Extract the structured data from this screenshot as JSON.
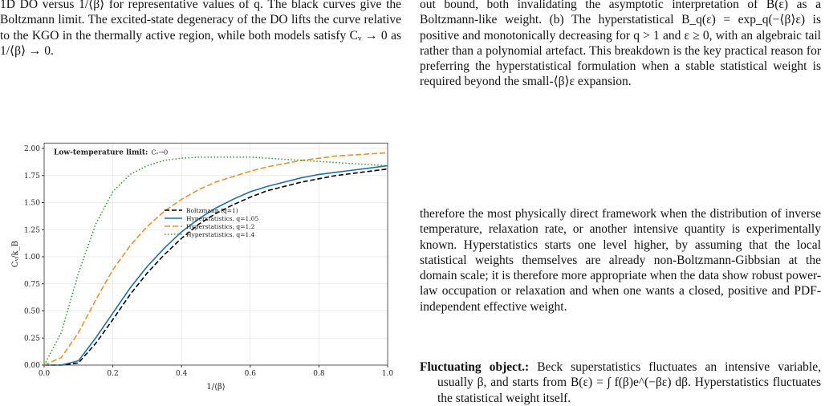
{
  "left_caption": "1D DO versus 1/⟨β⟩ for representative values of q. The black curves give the Boltzmann limit. The excited-state degeneracy of the DO lifts the curve relative to the KGO in the thermally active region, while both models satisfy Cᵥ → 0 as 1/⟨β⟩ → 0.",
  "chart_data": {
    "type": "line",
    "annotation_label": "Low-temperature limit:",
    "annotation_formula": "Cᵥ→0",
    "x_label": "1/⟨β⟩",
    "y_label": "Cᵥ/k_B",
    "x": [
      0,
      0.05,
      0.1,
      0.15,
      0.2,
      0.25,
      0.3,
      0.35,
      0.4,
      0.45,
      0.5,
      0.55,
      0.6,
      0.65,
      0.7,
      0.75,
      0.8,
      0.85,
      0.9,
      0.95,
      1.0
    ],
    "series": [
      {
        "name": "Boltzmann (q=1)",
        "color": "#000000",
        "dash": "6,3",
        "values": [
          0,
          0,
          0.02,
          0.2,
          0.42,
          0.65,
          0.85,
          1.02,
          1.17,
          1.3,
          1.4,
          1.48,
          1.55,
          1.61,
          1.65,
          1.69,
          1.72,
          1.75,
          1.77,
          1.79,
          1.81
        ]
      },
      {
        "name": "Hyperstatistics, q=1.05",
        "color": "#1f6fa8",
        "dash": "none",
        "values": [
          0,
          0,
          0.04,
          0.25,
          0.48,
          0.71,
          0.91,
          1.08,
          1.23,
          1.35,
          1.45,
          1.53,
          1.6,
          1.65,
          1.69,
          1.73,
          1.76,
          1.78,
          1.8,
          1.82,
          1.84
        ]
      },
      {
        "name": "Hyperstatistics, q=1.2",
        "color": "#f28e2b",
        "dash": "7,3",
        "values": [
          0,
          0.07,
          0.3,
          0.6,
          0.88,
          1.1,
          1.28,
          1.42,
          1.53,
          1.62,
          1.69,
          1.74,
          1.79,
          1.83,
          1.86,
          1.89,
          1.91,
          1.93,
          1.94,
          1.95,
          1.96
        ]
      },
      {
        "name": "Hyperstatistics, q=1.4",
        "color": "#2ca02c",
        "dash": "1.5,2.5",
        "values": [
          0,
          0.3,
          0.85,
          1.3,
          1.6,
          1.76,
          1.84,
          1.89,
          1.91,
          1.92,
          1.92,
          1.92,
          1.92,
          1.91,
          1.9,
          1.89,
          1.88,
          1.87,
          1.86,
          1.85,
          1.84
        ]
      }
    ],
    "xlim": [
      0,
      1
    ],
    "ylim": [
      0,
      2.05
    ],
    "xticks": [
      {
        "value": 0,
        "label": "0.0"
      },
      {
        "value": 0.2,
        "label": "0.2"
      },
      {
        "value": 0.4,
        "label": "0.4"
      },
      {
        "value": 0.6,
        "label": "0.6"
      },
      {
        "value": 0.8,
        "label": "0.8"
      },
      {
        "value": 1,
        "label": "1.0"
      }
    ],
    "yticks": [
      {
        "value": 0,
        "label": "0.00"
      },
      {
        "value": 0.25,
        "label": "0.25"
      },
      {
        "value": 0.5,
        "label": "0.50"
      },
      {
        "value": 0.75,
        "label": "0.75"
      },
      {
        "value": 1,
        "label": "1.00"
      },
      {
        "value": 1.25,
        "label": "1.25"
      },
      {
        "value": 1.5,
        "label": "1.50"
      },
      {
        "value": 1.75,
        "label": "1.75"
      },
      {
        "value": 2,
        "label": "2.00"
      }
    ],
    "grid": true,
    "legend": "center"
  },
  "right_paragraphs": [
    "out bound, both invalidating the asymptotic interpretation of B(ε) as a Boltzmann-like weight. (b) The hyperstatistical B_q(ε) = exp_q(−⟨β⟩ε) is positive and monotonically decreasing for q > 1 and ε ≥ 0, with an algebraic tail rather than a polynomial artefact. This breakdown is the key practical reason for preferring the hyperstatistical formulation when a stable statistical weight is required beyond the small-⟨β⟩ε expansion.",
    "therefore the most physically direct framework when the distribution of inverse temperature, relaxation rate, or another intensive quantity is experimentally known. Hyperstatistics starts one level higher, by assuming that the local statistical weights themselves are already non-Boltzmann-Gibbsian at the domain scale; it is therefore more appropriate when the data show robust power-law occupation or relaxation and when one wants a closed, positive and PDF-independent effective weight."
  ],
  "item": {
    "heading": "Fluctuating object.:",
    "text": "Beck superstatistics fluctuates an intensive variable, usually β, and starts from B(ε) = ∫ f(β)e^(−βε) dβ. Hyperstatistics fluctuates the statistical weight itself."
  }
}
